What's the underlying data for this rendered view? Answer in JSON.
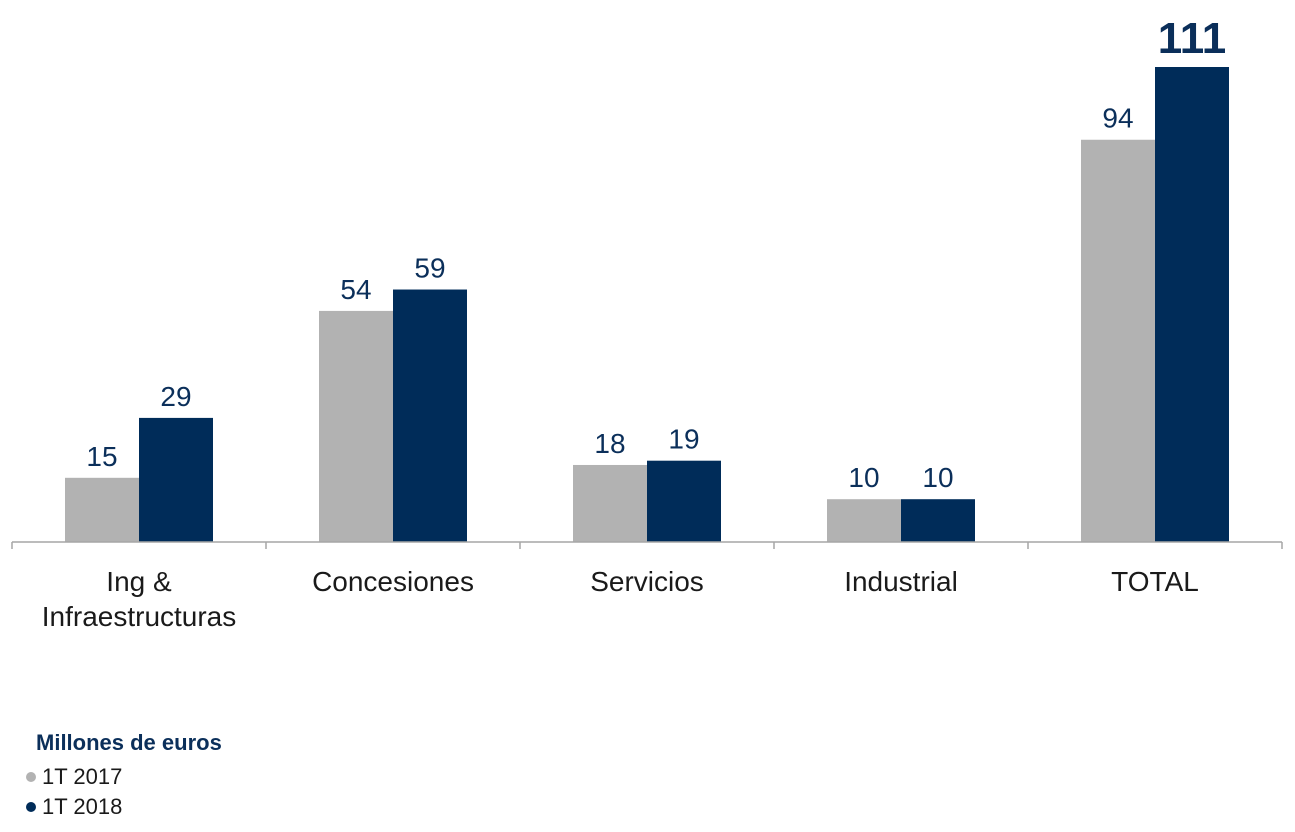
{
  "chart_data": {
    "type": "bar",
    "title": "",
    "xlabel": "",
    "ylabel": "",
    "ylim": [
      0,
      111
    ],
    "categories": [
      [
        "Ing &",
        "Infraestructuras"
      ],
      [
        "Concesiones"
      ],
      [
        "Servicios"
      ],
      [
        "Industrial"
      ],
      [
        "TOTAL"
      ]
    ],
    "series": [
      {
        "name": "1T 2017",
        "color": "#b2b2b2",
        "values": [
          15,
          54,
          18,
          10,
          94
        ]
      },
      {
        "name": "1T 2018",
        "color": "#002c59",
        "values": [
          29,
          59,
          19,
          10,
          111
        ]
      }
    ],
    "highlight_label": {
      "series": 1,
      "category": 4
    },
    "legend_title": "Millones de euros",
    "legend_position": "bottom-left",
    "grid": false
  }
}
